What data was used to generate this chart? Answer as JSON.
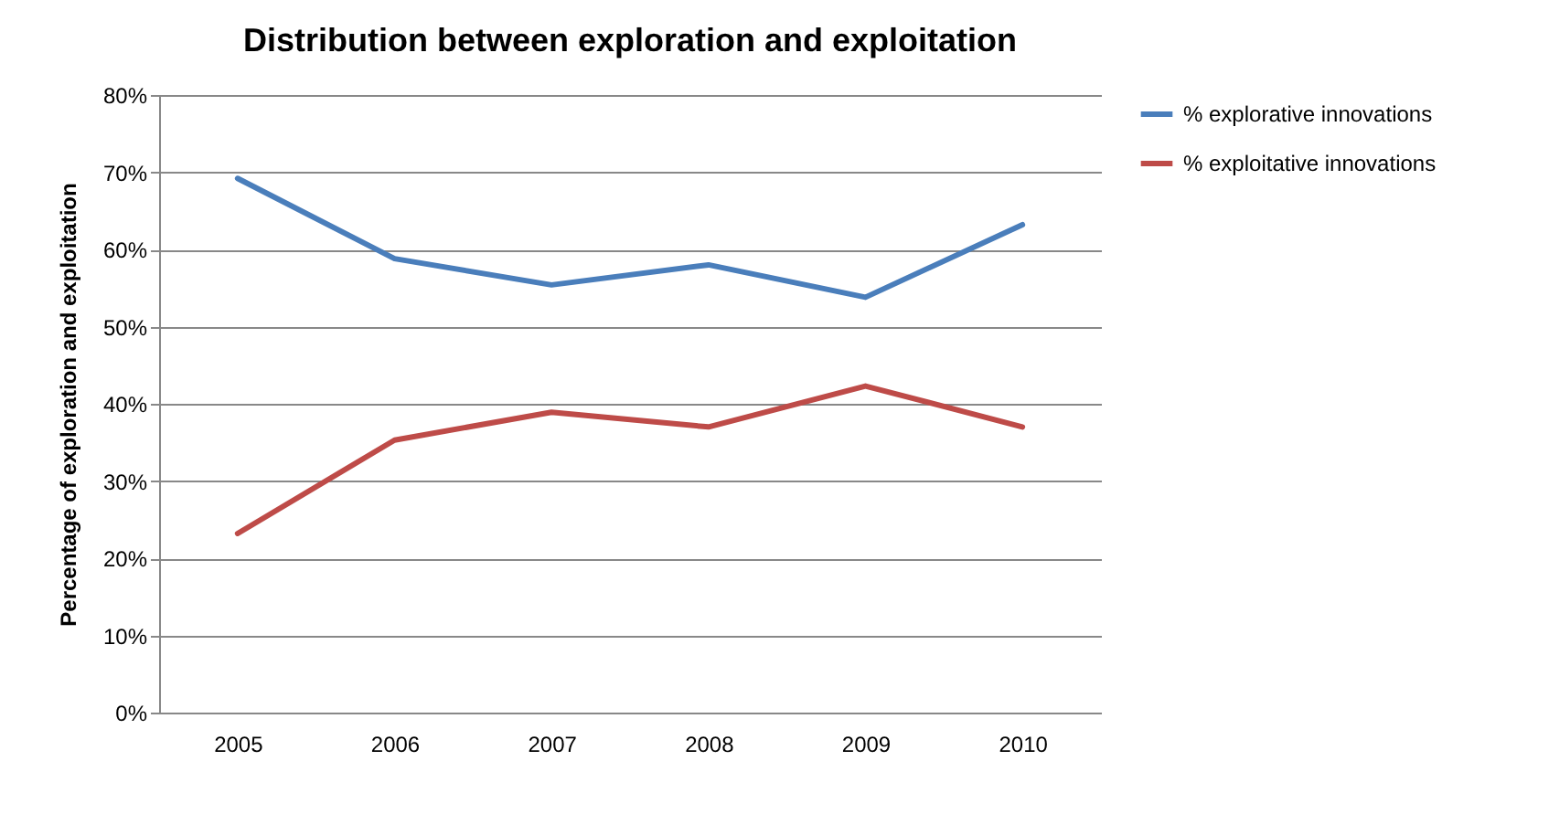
{
  "chart_data": {
    "type": "line",
    "title": "Distribution between exploration and exploitation",
    "ylabel": "Percentage of exploration and exploitation",
    "categories": [
      "2005",
      "2006",
      "2007",
      "2008",
      "2009",
      "2010"
    ],
    "series": [
      {
        "name": "% explorative innovations",
        "color": "#4a7ebb",
        "values": [
          69.2,
          58.8,
          55.4,
          58.0,
          53.8,
          63.2
        ]
      },
      {
        "name": "% exploitative innovations",
        "color": "#be4b48",
        "values": [
          23.2,
          35.3,
          38.9,
          37.0,
          42.3,
          37.0
        ]
      }
    ],
    "ylim": [
      0,
      80
    ],
    "yticks": [
      {
        "value": 0,
        "label": "0%"
      },
      {
        "value": 10,
        "label": "10%"
      },
      {
        "value": 20,
        "label": "20%"
      },
      {
        "value": 30,
        "label": "30%"
      },
      {
        "value": 40,
        "label": "40%"
      },
      {
        "value": 50,
        "label": "50%"
      },
      {
        "value": 60,
        "label": "60%"
      },
      {
        "value": 70,
        "label": "70%"
      },
      {
        "value": 80,
        "label": "80%"
      }
    ],
    "grid": "y",
    "legend": "right",
    "marker": "none",
    "line_style": "solid"
  }
}
